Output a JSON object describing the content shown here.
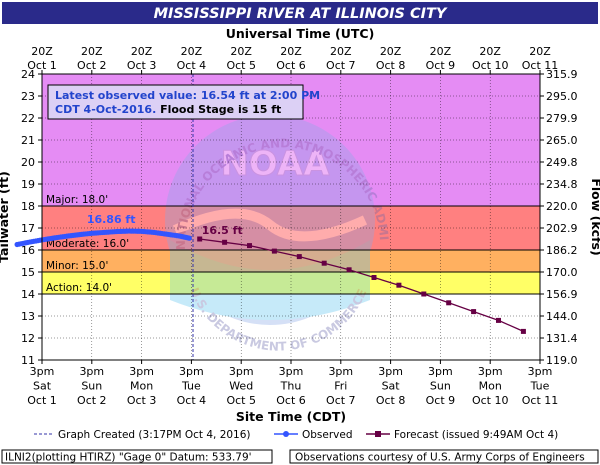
{
  "chart_data": {
    "type": "line",
    "title": "MISSISSIPPI RIVER AT ILLINOIS CITY",
    "top_axis_title": "Universal Time (UTC)",
    "bottom_axis_title": "Site Time (CDT)",
    "ylabel_left": "Tailwater (ft)",
    "ylabel_right": "Flow (kcfs)",
    "ylim": [
      11,
      24
    ],
    "y_ticks": [
      11,
      12,
      13,
      14,
      15,
      16,
      17,
      18,
      19,
      20,
      21,
      22,
      23,
      24
    ],
    "flow_ticks": [
      "119.0",
      "131.4",
      "144.0",
      "156.9",
      "170.0",
      "186.2",
      "202.9",
      "220.0",
      "234.8",
      "249.8",
      "265.0",
      "279.9",
      "295.0",
      "315.9"
    ],
    "x_ticks_bottom": [
      {
        "time": "3pm",
        "day": "Sat",
        "date": "Oct 1"
      },
      {
        "time": "3pm",
        "day": "Sun",
        "date": "Oct 2"
      },
      {
        "time": "3pm",
        "day": "Mon",
        "date": "Oct 3"
      },
      {
        "time": "3pm",
        "day": "Tue",
        "date": "Oct 4"
      },
      {
        "time": "3pm",
        "day": "Wed",
        "date": "Oct 5"
      },
      {
        "time": "3pm",
        "day": "Thu",
        "date": "Oct 6"
      },
      {
        "time": "3pm",
        "day": "Fri",
        "date": "Oct 7"
      },
      {
        "time": "3pm",
        "day": "Sat",
        "date": "Oct 8"
      },
      {
        "time": "3pm",
        "day": "Sun",
        "date": "Oct 9"
      },
      {
        "time": "3pm",
        "day": "Mon",
        "date": "Oct 10"
      },
      {
        "time": "3pm",
        "day": "Tue",
        "date": "Oct 11"
      }
    ],
    "x_ticks_top": [
      {
        "time": "20Z",
        "date": "Oct 1"
      },
      {
        "time": "20Z",
        "date": "Oct 2"
      },
      {
        "time": "20Z",
        "date": "Oct 3"
      },
      {
        "time": "20Z",
        "date": "Oct 4"
      },
      {
        "time": "20Z",
        "date": "Oct 5"
      },
      {
        "time": "20Z",
        "date": "Oct 6"
      },
      {
        "time": "20Z",
        "date": "Oct 7"
      },
      {
        "time": "20Z",
        "date": "Oct 8"
      },
      {
        "time": "20Z",
        "date": "Oct 9"
      },
      {
        "time": "20Z",
        "date": "Oct 10"
      },
      {
        "time": "20Z",
        "date": "Oct 11"
      }
    ],
    "bands": [
      {
        "label": "Major: 18.0'",
        "from": 18,
        "to": 24,
        "color": "#e58cf4"
      },
      {
        "label": "Moderate: 16.0'",
        "from": 16,
        "to": 18,
        "color": "#ff8080"
      },
      {
        "label": "Minor: 15.0'",
        "from": 15,
        "to": 16,
        "color": "#ffb060"
      },
      {
        "label": "Action: 14.0'",
        "from": 14,
        "to": 15,
        "color": "#ffff66"
      },
      {
        "label": "",
        "from": 11,
        "to": 14,
        "color": "#ffffff"
      }
    ],
    "observed": {
      "name": "Observed",
      "color": "#3355ff",
      "x": [
        "2016-10-01 03:00",
        "2016-10-01 09:00",
        "2016-10-01 15:00",
        "2016-10-01 21:00",
        "2016-10-02 03:00",
        "2016-10-02 09:00",
        "2016-10-02 15:00",
        "2016-10-02 21:00",
        "2016-10-03 03:00",
        "2016-10-03 09:00",
        "2016-10-03 15:00",
        "2016-10-03 21:00",
        "2016-10-04 03:00",
        "2016-10-04 09:00",
        "2016-10-04 14:00"
      ],
      "y": [
        16.25,
        16.36,
        16.46,
        16.55,
        16.63,
        16.7,
        16.76,
        16.8,
        16.84,
        16.86,
        16.85,
        16.8,
        16.72,
        16.64,
        16.54
      ],
      "peak_label": "16.86 ft"
    },
    "forecast": {
      "name": "Forecast (issued 9:49AM Oct 4)",
      "color": "#660044",
      "x": [
        "2016-10-04 19:00",
        "2016-10-05 07:00",
        "2016-10-05 19:00",
        "2016-10-06 07:00",
        "2016-10-06 19:00",
        "2016-10-07 07:00",
        "2016-10-07 19:00",
        "2016-10-08 07:00",
        "2016-10-08 19:00",
        "2016-10-09 07:00",
        "2016-10-09 19:00",
        "2016-10-10 07:00",
        "2016-10-10 19:00",
        "2016-10-11 07:00"
      ],
      "y": [
        16.5,
        16.35,
        16.2,
        15.95,
        15.7,
        15.4,
        15.1,
        14.75,
        14.4,
        14.0,
        13.6,
        13.2,
        12.8,
        12.3
      ],
      "first_label": "16.5 ft"
    },
    "graph_created": "Graph Created (3:17PM Oct 4, 2016)",
    "legend_position": "bottom"
  },
  "info_box": {
    "line1": "Latest observed value: 16.54 ft at 2:00 PM",
    "line2_date": "CDT 4-Oct-2016.",
    "line2_flood": " Flood Stage is 15 ft"
  },
  "watermark": {
    "logo": "NOAA",
    "arc_text": "NATIONAL OCEANIC AND ATMOSPHERIC ADMINISTRATION",
    "arc_text_bottom": "U.S. DEPARTMENT OF COMMERCE"
  },
  "footer": {
    "left": "ILNI2(plotting HTIRZ) \"Gage 0\" Datum: 533.79'",
    "right": "Observations courtesy of U.S. Army Corps of Engineers"
  },
  "colors": {
    "title_bg": "#2a2a8a",
    "title_fg": "#ffffff",
    "axis": "#000000",
    "grid": "#000000"
  }
}
